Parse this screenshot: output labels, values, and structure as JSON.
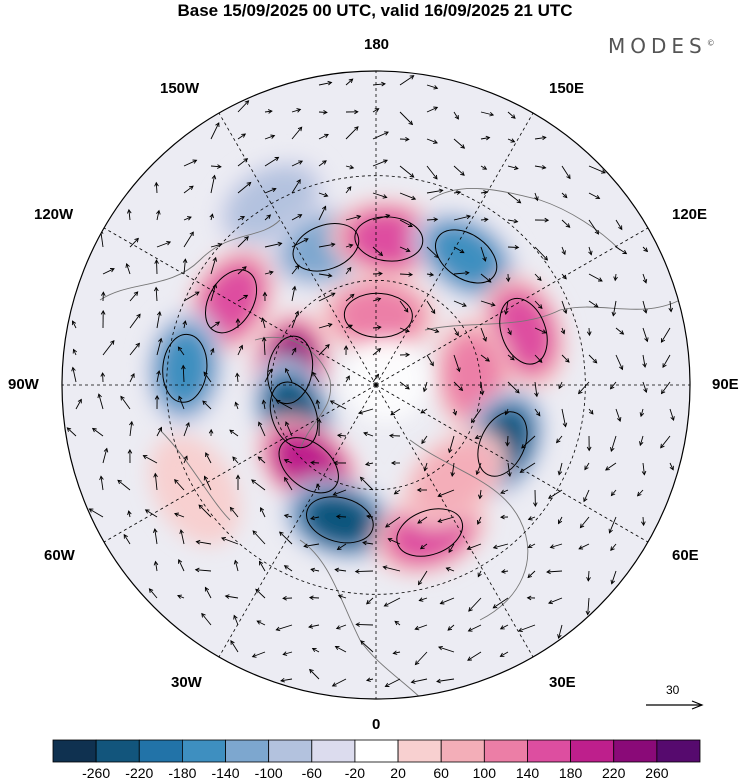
{
  "header": {
    "title": "Base 15/09/2025 00 UTC, valid 16/09/2025 21 UTC",
    "brand": "MODES",
    "brand_mark": "©"
  },
  "map": {
    "projection": "north-polar-stereographic",
    "longitude_labels": {
      "top": "180",
      "bottom": "0",
      "left": "90W",
      "right": "90E",
      "upper_left": "150W",
      "upper_right": "150E",
      "mid_upper_left": "120W",
      "mid_upper_right": "120E",
      "mid_lower_left": "60W",
      "mid_lower_right": "60E",
      "lower_left": "30W",
      "lower_right": "30E"
    },
    "reference_vector": {
      "value": "30"
    }
  },
  "colorbar": {
    "ticks": [
      "-260",
      "-220",
      "-180",
      "-140",
      "-100",
      "-60",
      "-20",
      "20",
      "60",
      "100",
      "140",
      "180",
      "220",
      "260"
    ],
    "colors": [
      "#0f3150",
      "#12557c",
      "#2273a8",
      "#3e8fc0",
      "#7da7cf",
      "#b3c2de",
      "#dcdcee",
      "#ffffff",
      "#f8d0d0",
      "#f3aeb8",
      "#ec7ea6",
      "#dd4ea0",
      "#be1f8c",
      "#8a0a78",
      "#560a6e"
    ]
  },
  "anomalies": [
    {
      "lon_deg": -100,
      "colat_deg": 25,
      "value": 240
    },
    {
      "lon_deg": -120,
      "colat_deg": 48,
      "value": 150
    },
    {
      "lon_deg": -150,
      "colat_deg": 60,
      "value": -60
    },
    {
      "lon_deg": -160,
      "colat_deg": 42,
      "value": -130
    },
    {
      "lon_deg": 175,
      "colat_deg": 42,
      "value": 170
    },
    {
      "lon_deg": 178,
      "colat_deg": 20,
      "value": 130
    },
    {
      "lon_deg": 145,
      "colat_deg": 45,
      "value": -150
    },
    {
      "lon_deg": 110,
      "colat_deg": 45,
      "value": 150
    },
    {
      "lon_deg": 95,
      "colat_deg": 28,
      "value": 110
    },
    {
      "lon_deg": 65,
      "colat_deg": 40,
      "value": -230
    },
    {
      "lon_deg": -95,
      "colat_deg": 55,
      "value": -170
    },
    {
      "lon_deg": -70,
      "colat_deg": 25,
      "value": -220
    },
    {
      "lon_deg": -40,
      "colat_deg": 30,
      "value": 220
    },
    {
      "lon_deg": -15,
      "colat_deg": 40,
      "value": -220
    },
    {
      "lon_deg": 20,
      "colat_deg": 45,
      "value": 150
    },
    {
      "lon_deg": 40,
      "colat_deg": 35,
      "value": 70
    },
    {
      "lon_deg": -60,
      "colat_deg": 60,
      "value": 60
    }
  ]
}
